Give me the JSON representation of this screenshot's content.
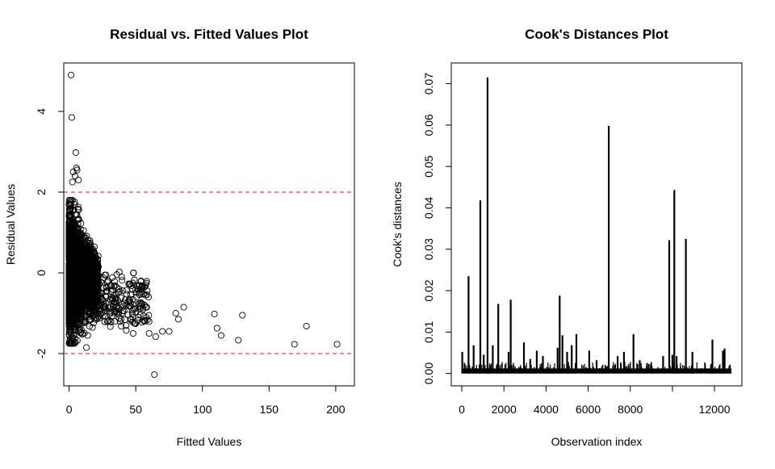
{
  "chart_data": [
    {
      "type": "scatter",
      "title": "Residual vs. Fitted Values Plot",
      "xlabel": "Fitted Values",
      "ylabel": "Residual Values",
      "xlim": [
        -4,
        214
      ],
      "ylim": [
        -2.8,
        5.2
      ],
      "xticks": [
        0,
        50,
        100,
        150,
        200
      ],
      "yticks": [
        -2,
        0,
        2,
        4
      ],
      "xtick_labels": [
        "0",
        "50",
        "100",
        "150",
        "200"
      ],
      "ytick_labels": [
        "-2",
        "0",
        "2",
        "4"
      ],
      "reference_lines": [
        {
          "y": 2,
          "color": "#e8474b",
          "style": "dashed"
        },
        {
          "y": -2,
          "color": "#e8474b",
          "style": "dashed"
        }
      ],
      "marker": "open-circle",
      "outlier_points": [
        {
          "x": 1.5,
          "y": 4.9
        },
        {
          "x": 2.0,
          "y": 3.85
        },
        {
          "x": 5.0,
          "y": 2.98
        },
        {
          "x": 3.0,
          "y": 2.5
        },
        {
          "x": 5.5,
          "y": 2.6
        },
        {
          "x": 6.0,
          "y": 2.55
        },
        {
          "x": 4.5,
          "y": 2.4
        },
        {
          "x": 2.5,
          "y": 2.25
        },
        {
          "x": 7.0,
          "y": 2.3
        },
        {
          "x": 64.0,
          "y": -2.52
        },
        {
          "x": 13.0,
          "y": -1.85
        },
        {
          "x": 14.0,
          "y": -1.55
        },
        {
          "x": 109.0,
          "y": -1.02
        },
        {
          "x": 111.0,
          "y": -1.37
        },
        {
          "x": 114.0,
          "y": -1.55
        },
        {
          "x": 127.0,
          "y": -1.67
        },
        {
          "x": 130.0,
          "y": -1.05
        },
        {
          "x": 169.0,
          "y": -1.77
        },
        {
          "x": 178.0,
          "y": -1.32
        },
        {
          "x": 201.0,
          "y": -1.77
        },
        {
          "x": 65.0,
          "y": -1.58
        },
        {
          "x": 70.0,
          "y": -1.45
        },
        {
          "x": 75.0,
          "y": -1.45
        },
        {
          "x": 80.0,
          "y": -1.0
        },
        {
          "x": 86.0,
          "y": -0.85
        },
        {
          "x": 82.0,
          "y": -1.15
        },
        {
          "x": 60.0,
          "y": -1.5
        },
        {
          "x": 57.0,
          "y": -1.2
        },
        {
          "x": 52.0,
          "y": -1.1
        },
        {
          "x": 48.0,
          "y": -1.5
        }
      ],
      "dense_region_note": "thousands of points concentrated near fitted 0-20, residuals -1.7 to 1.8"
    },
    {
      "type": "bar",
      "subtype": "spike",
      "title": "Cook's Distances Plot",
      "xlabel": "Observation index",
      "ylabel": "Cook's distances",
      "xlim": [
        -500,
        13300
      ],
      "ylim": [
        -0.003,
        0.075
      ],
      "xticks": [
        0,
        2000,
        4000,
        6000,
        8000,
        12000
      ],
      "xtick_labels": [
        "0",
        "2000",
        "4000",
        "6000",
        "8000",
        "12000"
      ],
      "yticks": [
        0.0,
        0.01,
        0.02,
        0.03,
        0.04,
        0.05,
        0.06,
        0.07
      ],
      "ytick_labels": [
        "0.00",
        "0.01",
        "0.02",
        "0.03",
        "0.04",
        "0.05",
        "0.06",
        "0.07"
      ],
      "n_observations": 12800,
      "spikes": [
        {
          "x": 20,
          "y": 0.0052
        },
        {
          "x": 320,
          "y": 0.0235
        },
        {
          "x": 560,
          "y": 0.0068
        },
        {
          "x": 880,
          "y": 0.0418
        },
        {
          "x": 1040,
          "y": 0.0045
        },
        {
          "x": 1220,
          "y": 0.0715
        },
        {
          "x": 1470,
          "y": 0.0068
        },
        {
          "x": 1730,
          "y": 0.0168
        },
        {
          "x": 2220,
          "y": 0.0052
        },
        {
          "x": 2320,
          "y": 0.0178
        },
        {
          "x": 2950,
          "y": 0.0075
        },
        {
          "x": 3250,
          "y": 0.0035
        },
        {
          "x": 3560,
          "y": 0.0055
        },
        {
          "x": 3850,
          "y": 0.0042
        },
        {
          "x": 4550,
          "y": 0.0062
        },
        {
          "x": 4650,
          "y": 0.0188
        },
        {
          "x": 4780,
          "y": 0.0092
        },
        {
          "x": 5000,
          "y": 0.0052
        },
        {
          "x": 5220,
          "y": 0.0068
        },
        {
          "x": 5440,
          "y": 0.0095
        },
        {
          "x": 6050,
          "y": 0.0055
        },
        {
          "x": 6400,
          "y": 0.0032
        },
        {
          "x": 6980,
          "y": 0.0598
        },
        {
          "x": 7400,
          "y": 0.0042
        },
        {
          "x": 7700,
          "y": 0.0052
        },
        {
          "x": 8150,
          "y": 0.0095
        },
        {
          "x": 8450,
          "y": 0.0032
        },
        {
          "x": 8800,
          "y": 0.0025
        },
        {
          "x": 9560,
          "y": 0.0042
        },
        {
          "x": 9850,
          "y": 0.0322
        },
        {
          "x": 10000,
          "y": 0.0045
        },
        {
          "x": 10090,
          "y": 0.0443
        },
        {
          "x": 10200,
          "y": 0.0042
        },
        {
          "x": 10640,
          "y": 0.0325
        },
        {
          "x": 10950,
          "y": 0.0052
        },
        {
          "x": 11900,
          "y": 0.0082
        },
        {
          "x": 12400,
          "y": 0.0055
        },
        {
          "x": 12480,
          "y": 0.006
        },
        {
          "x": 12700,
          "y": 0.0015
        }
      ]
    }
  ]
}
